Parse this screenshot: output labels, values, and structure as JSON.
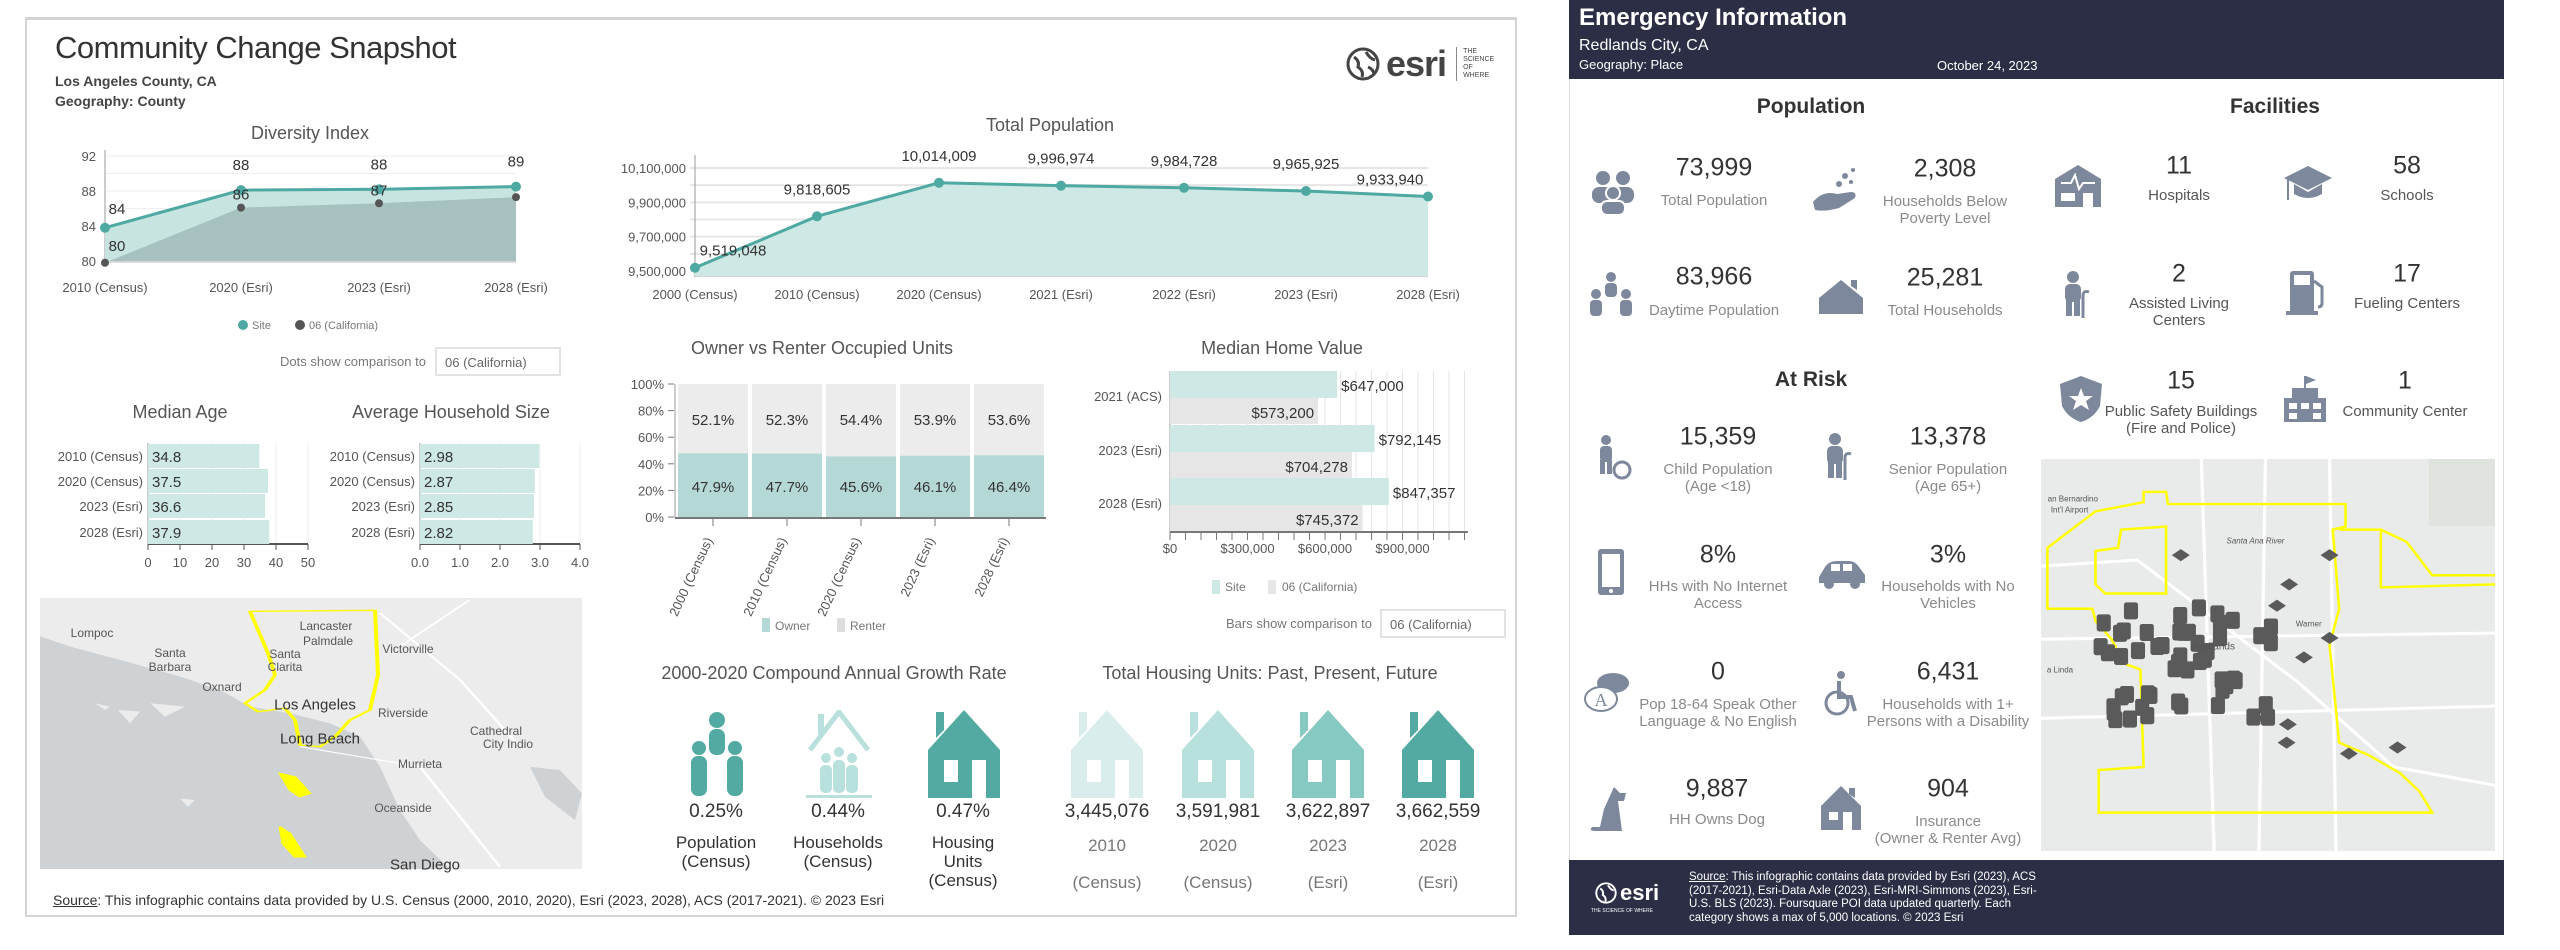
{
  "left": {
    "title": "Community Change Snapshot",
    "location": "Los Angeles County, CA",
    "geography": "Geography: County",
    "logo_text": "esri",
    "logo_tagline": "THE SCIENCE OF WHERE",
    "dots_compare_label": "Dots show comparison to",
    "dots_compare_value": "06 (California)",
    "bars_compare_label": "Bars show comparison to",
    "bars_compare_value": "06 (California)",
    "map_labels": [
      "Lompoc",
      "Lancaster",
      "Palmdale",
      "Victorville",
      "Santa",
      "Barbara",
      "Santa",
      "Clarita",
      "Oxnard",
      "Los Angeles",
      "Riverside",
      "Cathedral",
      "City Indio",
      "Long Beach",
      "Murrieta",
      "Oceanside",
      "San Diego"
    ],
    "cagr": {
      "title": "2000-2020 Compound Annual Growth Rate",
      "items": [
        {
          "value": "0.25%",
          "label": [
            "Population",
            "(Census)"
          ],
          "icon": "people-icon"
        },
        {
          "value": "0.44%",
          "label": [
            "Households",
            "(Census)"
          ],
          "icon": "household-icon"
        },
        {
          "value": "0.47%",
          "label": [
            "Housing",
            "Units",
            "(Census)"
          ],
          "icon": "house-icon"
        }
      ]
    },
    "housing": {
      "title": "Total Housing Units: Past, Present, Future",
      "items": [
        {
          "value": "3,445,076",
          "year": "2010",
          "source": "(Census)",
          "color": "#d9eeec"
        },
        {
          "value": "3,591,981",
          "year": "2020",
          "source": "(Census)",
          "color": "#b8e0dc"
        },
        {
          "value": "3,622,897",
          "year": "2023",
          "source": "(Esri)",
          "color": "#86c8c2"
        },
        {
          "value": "3,662,559",
          "year": "2028",
          "source": "(Esri)",
          "color": "#52aaa3"
        }
      ]
    },
    "source_label": "Source",
    "source_text": ": This infographic contains data provided by U.S. Census (2000, 2010, 2020), Esri (2023, 2028), ACS (2017-2021). © 2023 Esri"
  },
  "right": {
    "title": "Emergency Information",
    "location": "Redlands City, CA",
    "geography": "Geography: Place",
    "date": "October 24, 2023",
    "population_heading": "Population",
    "at_risk_heading": "At Risk",
    "facilities_heading": "Facilities",
    "population": [
      {
        "value": "73,999",
        "label": [
          "Total Population"
        ],
        "icon": "people-group-icon"
      },
      {
        "value": "2,308",
        "label": [
          "Households Below",
          "Poverty Level"
        ],
        "icon": "hand-coins-icon"
      },
      {
        "value": "83,966",
        "label": [
          "Daytime Population"
        ],
        "icon": "daytime-people-icon"
      },
      {
        "value": "25,281",
        "label": [
          "Total Households"
        ],
        "icon": "house-icon"
      }
    ],
    "at_risk": [
      {
        "value": "15,359",
        "label": [
          "Child Population",
          "(Age <18)"
        ],
        "icon": "child-ball-icon"
      },
      {
        "value": "13,378",
        "label": [
          "Senior Population",
          "(Age 65+)"
        ],
        "icon": "senior-cane-icon"
      },
      {
        "value": "8%",
        "label": [
          "HHs with No Internet",
          "Access"
        ],
        "icon": "tablet-icon"
      },
      {
        "value": "3%",
        "label": [
          "Households with No",
          "Vehicles"
        ],
        "icon": "car-icon"
      },
      {
        "value": "0",
        "label": [
          "Pop 18-64 Speak Other",
          "Language & No English"
        ],
        "icon": "speech-bubble-icon"
      },
      {
        "value": "6,431",
        "label": [
          "Households with 1+",
          "Persons with a Disability"
        ],
        "icon": "wheelchair-icon"
      },
      {
        "value": "9,887",
        "label": [
          "HH Owns Dog"
        ],
        "icon": "dog-icon"
      },
      {
        "value": "904",
        "label": [
          "Insurance",
          "(Owner & Renter Avg)"
        ],
        "icon": "house-insurance-icon"
      }
    ],
    "facilities": [
      {
        "value": "11",
        "label": [
          "Hospitals"
        ],
        "icon": "hospital-icon"
      },
      {
        "value": "58",
        "label": [
          "Schools"
        ],
        "icon": "graduation-cap-icon"
      },
      {
        "value": "2",
        "label": [
          "Assisted Living",
          "Centers"
        ],
        "icon": "senior-cane-icon"
      },
      {
        "value": "17",
        "label": [
          "Fueling Centers"
        ],
        "icon": "fuel-pump-icon"
      },
      {
        "value": "15",
        "label": [
          "Public Safety Buildings",
          "(Fire and Police)"
        ],
        "icon": "shield-star-icon"
      },
      {
        "value": "1",
        "label": [
          "Community Center"
        ],
        "icon": "community-building-icon"
      }
    ],
    "map_labels": [
      "an Bernardino",
      "Int'l Airport",
      "Santa Ana River",
      "Warner",
      "Redlands",
      "a Linda"
    ],
    "logo_text": "esri",
    "logo_tagline": "THE SCIENCE OF WHERE",
    "source_label": "Source",
    "source_lines": [
      ": This infographic contains data provided by Esri (2023), ACS",
      "(2017-2021), Esri-Data Axle (2023), Esri-MRI-Simmons (2023), Esri-",
      "U.S. BLS (2023). Foursquare POI data updated quarterly. Each",
      "category shows a max of 5,000 locations.  © 2023 Esri"
    ]
  },
  "colors": {
    "teal": "#4ea9a2",
    "light_teal": "#cde8e5",
    "compare_gray": "#e8e8e8",
    "icon_slate": "#7d889c",
    "header_navy": "#2b2e45",
    "boundary_yellow": "#ffff00"
  },
  "chart_data": [
    {
      "id": "diversity",
      "type": "area",
      "title": "Diversity Index",
      "categories": [
        "2010 (Census)",
        "2020 (Esri)",
        "2023 (Esri)",
        "2028 (Esri)"
      ],
      "yticks": [
        "92",
        "88",
        "84",
        "80"
      ],
      "ylim": [
        80,
        92
      ],
      "series": [
        {
          "name": "Site",
          "values": [
            83.8,
            88.1,
            88.2,
            88.5
          ],
          "labels": [
            "84",
            "88",
            "88",
            "89"
          ]
        },
        {
          "name": "06 (California)",
          "values": [
            79.8,
            86.1,
            86.6,
            87.3
          ],
          "labels": [
            "80",
            "86",
            "87",
            ""
          ]
        }
      ],
      "legend": "bottom"
    },
    {
      "id": "total_population",
      "type": "area",
      "title": "Total Population",
      "categories": [
        "2000 (Census)",
        "2010 (Census)",
        "2020 (Census)",
        "2021 (Esri)",
        "2022 (Esri)",
        "2023 (Esri)",
        "2028 (Esri)"
      ],
      "yticks": [
        "10,100,000",
        "9,900,000",
        "9,700,000",
        "9,500,000"
      ],
      "ylim": [
        9500000,
        10100000
      ],
      "series": [
        {
          "values": [
            9519048,
            9818605,
            10014009,
            9996974,
            9984728,
            9965925,
            9933940
          ],
          "labels": [
            "9,519,048",
            "9,818,605",
            "10,014,009",
            "9,996,974",
            "9,984,728",
            "9,965,925",
            "9,933,940"
          ]
        }
      ]
    },
    {
      "id": "median_age",
      "type": "bar",
      "title": "Median Age",
      "categories": [
        "2010 (Census)",
        "2020 (Census)",
        "2023 (Esri)",
        "2028 (Esri)"
      ],
      "values": [
        34.8,
        37.5,
        36.6,
        37.9
      ],
      "labels": [
        "34.8",
        "37.5",
        "36.6",
        "37.9"
      ],
      "xticks": [
        "0",
        "10",
        "20",
        "30",
        "40",
        "50"
      ],
      "xlim": [
        0,
        50
      ]
    },
    {
      "id": "household_size",
      "type": "bar",
      "title": "Average Household Size",
      "categories": [
        "2010 (Census)",
        "2020 (Census)",
        "2023 (Esri)",
        "2028 (Esri)"
      ],
      "values": [
        2.98,
        2.87,
        2.85,
        2.82
      ],
      "labels": [
        "2.98",
        "2.87",
        "2.85",
        "2.82"
      ],
      "xticks": [
        "0.0",
        "1.0",
        "2.0",
        "3.0",
        "4.0"
      ],
      "xlim": [
        0,
        4
      ]
    },
    {
      "id": "owner_renter",
      "type": "bar",
      "stacked": true,
      "title": "Owner vs Renter Occupied Units",
      "categories": [
        "2000 (Census)",
        "2010 (Census)",
        "2020 (Census)",
        "2023 (Esri)",
        "2028 (Esri)"
      ],
      "yticks": [
        "100%",
        "80%",
        "60%",
        "40%",
        "20%",
        "0%"
      ],
      "ylim": [
        0,
        100
      ],
      "series": [
        {
          "name": "Owner",
          "values": [
            47.9,
            47.7,
            45.6,
            46.1,
            46.4
          ],
          "labels": [
            "47.9%",
            "47.7%",
            "45.6%",
            "46.1%",
            "46.4%"
          ]
        },
        {
          "name": "Renter",
          "values": [
            52.1,
            52.3,
            54.4,
            53.9,
            53.6
          ],
          "labels": [
            "52.1%",
            "52.3%",
            "54.4%",
            "53.9%",
            "53.6%"
          ]
        }
      ],
      "legend": "bottom"
    },
    {
      "id": "home_value",
      "type": "bar",
      "orientation": "horizontal",
      "title": "Median Home Value",
      "categories": [
        "2021 (ACS)",
        "2023 (Esri)",
        "2028 (Esri)"
      ],
      "series": [
        {
          "name": "Site",
          "values": [
            647000,
            792145,
            847357
          ],
          "labels": [
            "$647,000",
            "$792,145",
            "$847,357"
          ]
        },
        {
          "name": "06 (California)",
          "values": [
            573200,
            704278,
            745372
          ],
          "labels": [
            "$573,200",
            "$704,278",
            "$745,372"
          ]
        }
      ],
      "xticks": [
        "$0",
        "$300,000",
        "$600,000",
        "$900,000"
      ],
      "xlim": [
        0,
        1150000
      ],
      "legend": "bottom"
    }
  ]
}
